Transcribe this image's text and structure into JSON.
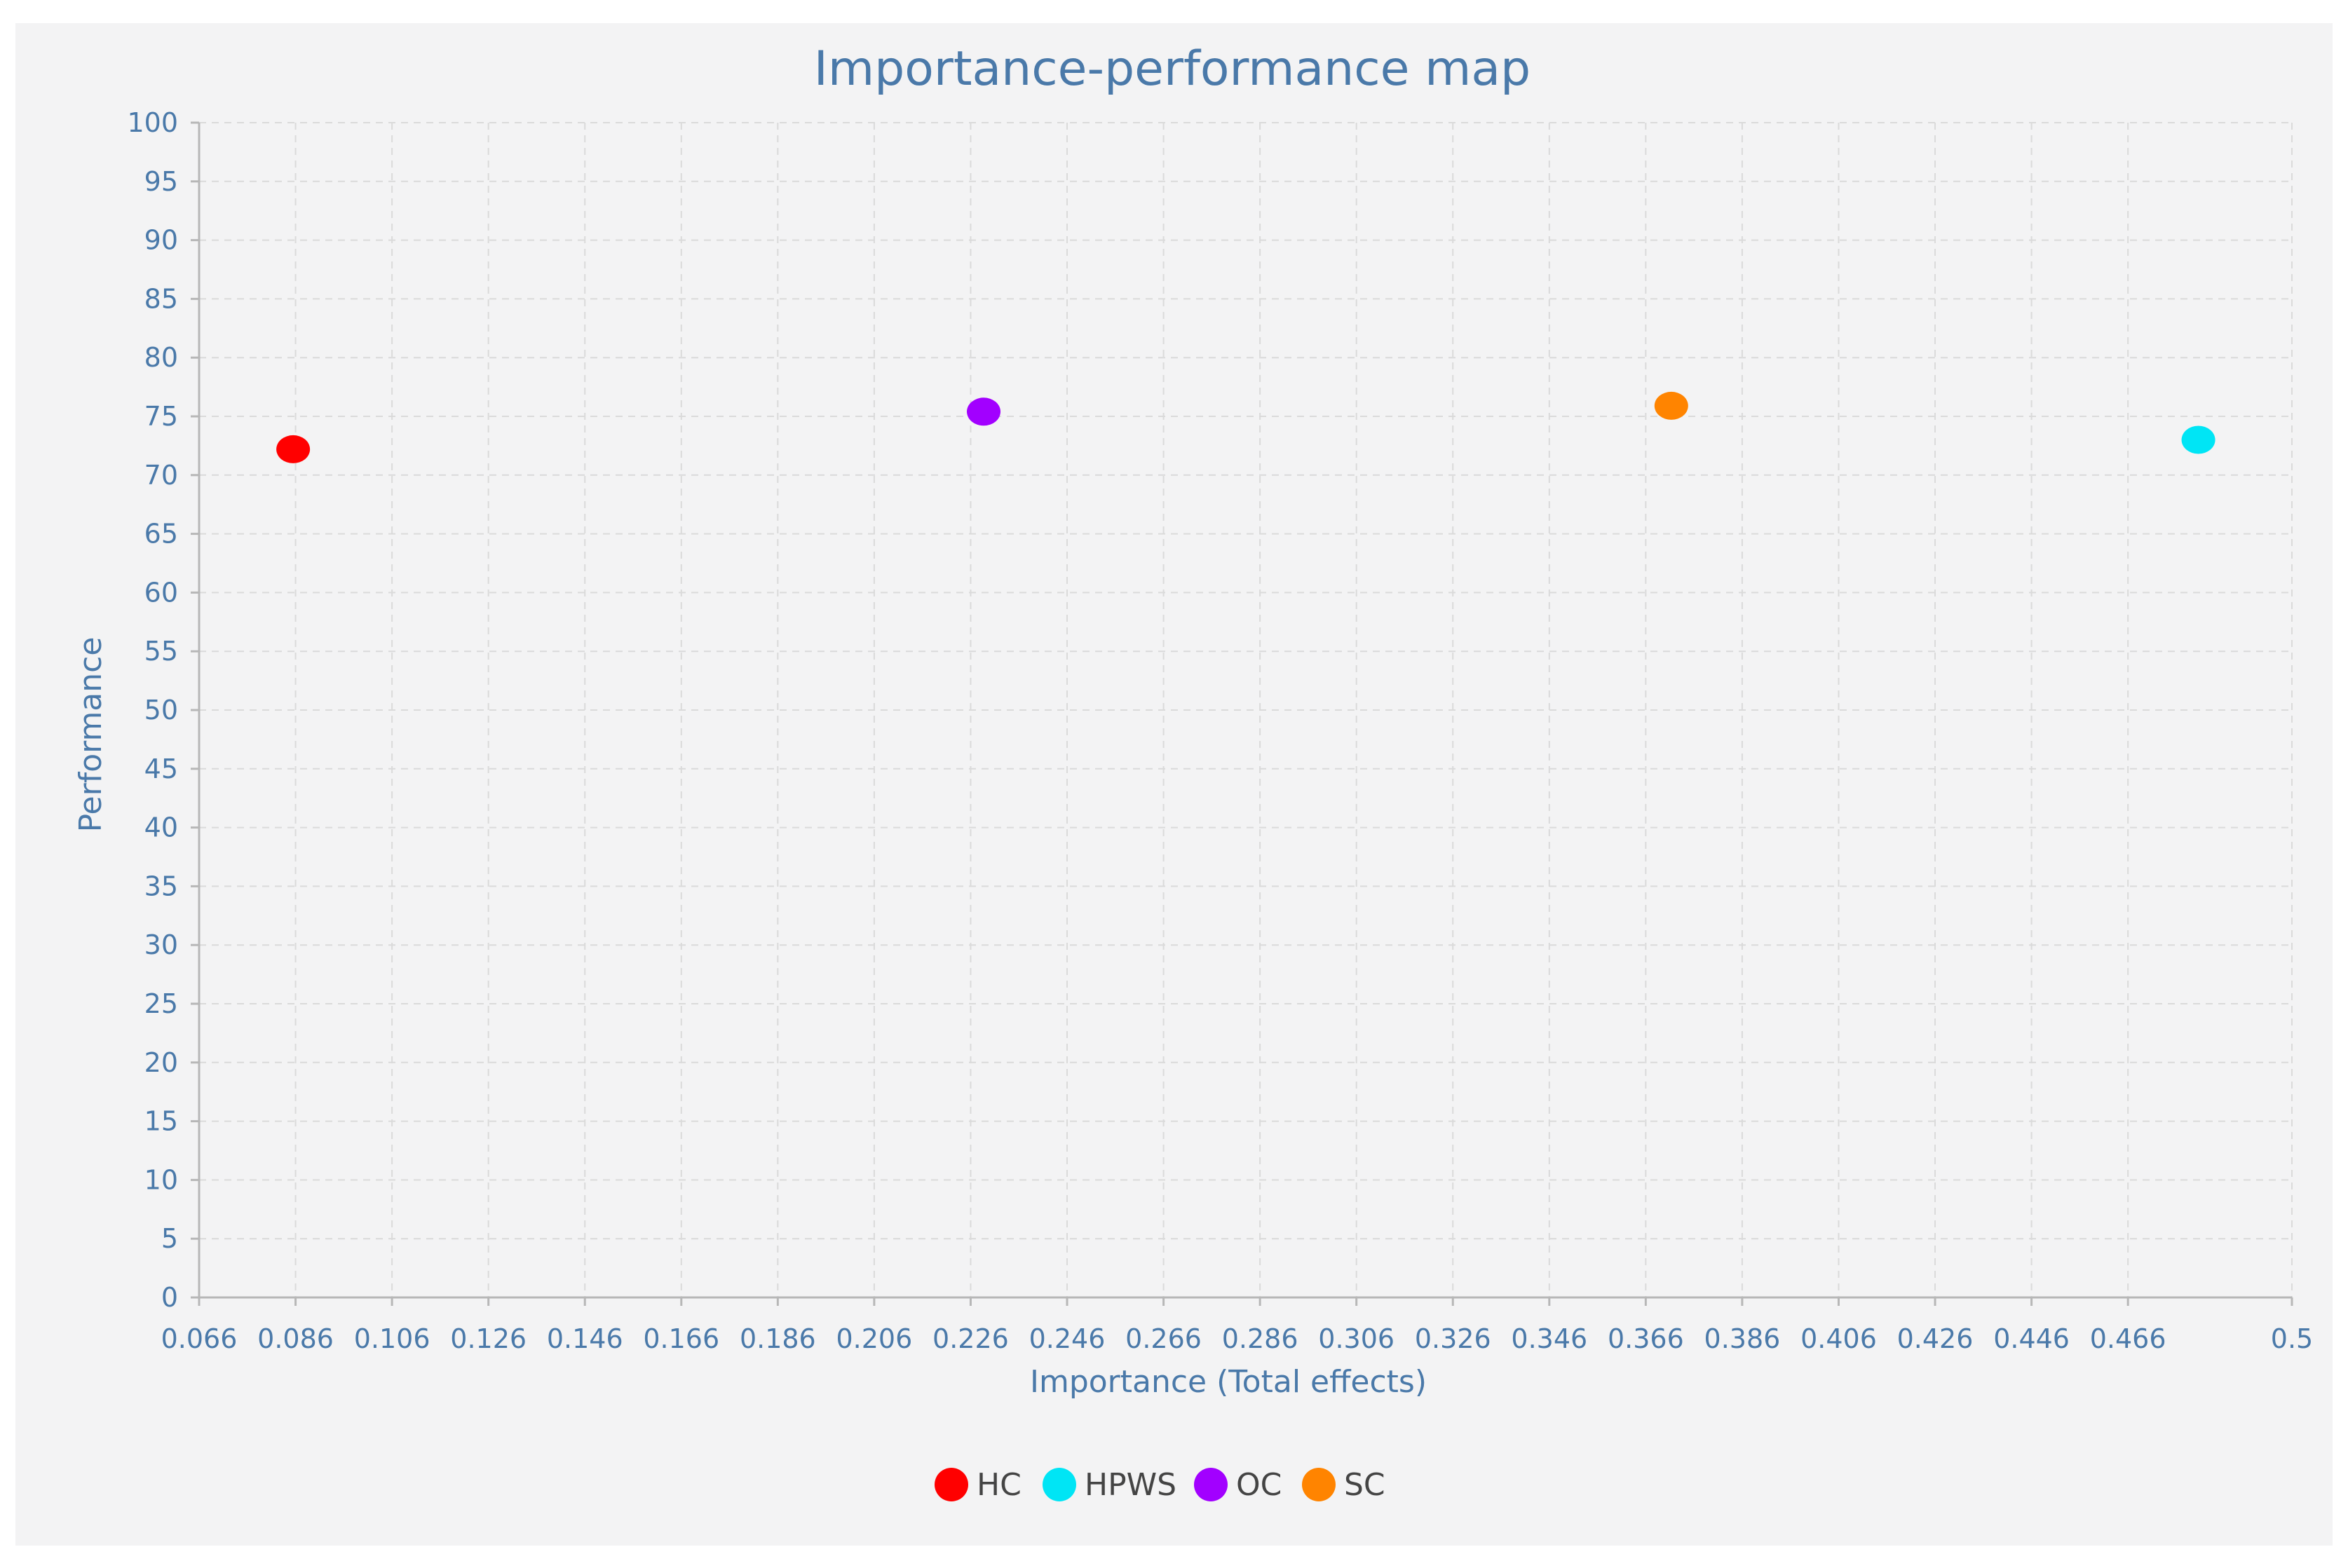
{
  "chart_data": {
    "type": "scatter",
    "title": "Importance-performance map",
    "xlabel": "Importance (Total effects)",
    "ylabel": "Performance",
    "xlim": [
      0.066,
      0.5
    ],
    "ylim": [
      0,
      100
    ],
    "x_ticks": [
      "0.066",
      "0.086",
      "0.106",
      "0.126",
      "0.146",
      "0.166",
      "0.186",
      "0.206",
      "0.226",
      "0.246",
      "0.266",
      "0.286",
      "0.306",
      "0.326",
      "0.346",
      "0.366",
      "0.386",
      "0.406",
      "0.426",
      "0.446",
      "0.466",
      "0.5"
    ],
    "y_ticks": [
      "0",
      "5",
      "10",
      "15",
      "20",
      "25",
      "30",
      "35",
      "40",
      "45",
      "50",
      "55",
      "60",
      "65",
      "70",
      "75",
      "80",
      "85",
      "90",
      "95",
      "100"
    ],
    "grid": true,
    "legend_position": "bottom",
    "series": [
      {
        "name": "HC",
        "color": "#ff0000",
        "x": 0.0855,
        "y": 72.2
      },
      {
        "name": "HPWS",
        "color": "#00e5f5",
        "x": 0.4806,
        "y": 73.0
      },
      {
        "name": "OC",
        "color": "#a200ff",
        "x": 0.2287,
        "y": 75.4
      },
      {
        "name": "SC",
        "color": "#ff8400",
        "x": 0.3713,
        "y": 75.9
      }
    ]
  }
}
